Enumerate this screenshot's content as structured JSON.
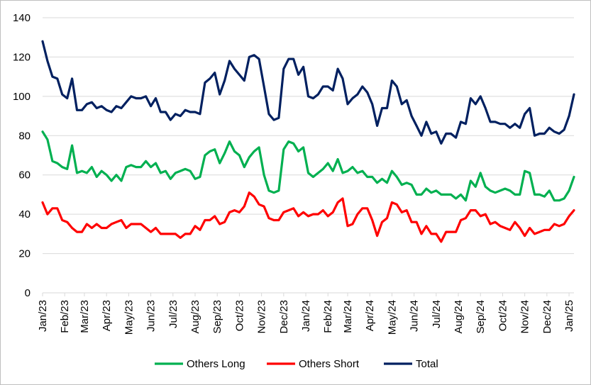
{
  "chart_data": {
    "type": "line",
    "x_tick_labels": [
      "Jan/23",
      "Feb/23",
      "Mar/23",
      "Apr/23",
      "May/23",
      "Jun/23",
      "Jul/23",
      "Aug/23",
      "Sep/23",
      "Oct/23",
      "Nov/23",
      "Dec/23",
      "Jan/24",
      "Feb/24",
      "Mar/24",
      "Apr/24",
      "May/24",
      "Jun/24",
      "Jul/24",
      "Aug/24",
      "Sep/24",
      "Oct/24",
      "Nov/24",
      "Dec/24",
      "Jan/25"
    ],
    "x_tick_weeks": [
      0,
      4.5,
      8.5,
      13,
      17.5,
      22,
      26.5,
      31,
      35.5,
      40,
      44.5,
      49,
      53.5,
      58,
      62,
      66.5,
      71,
      75.5,
      80,
      84.5,
      89,
      93.5,
      98,
      102.5,
      107
    ],
    "ylim": [
      0,
      140
    ],
    "y_ticks": [
      0,
      20,
      40,
      60,
      80,
      100,
      120,
      140
    ],
    "grid": "horizontal",
    "legend_position": "bottom",
    "series": [
      {
        "name": "Others Long",
        "color": "#00b050",
        "values": [
          82,
          78,
          67,
          66,
          64,
          63,
          75,
          61,
          62,
          61,
          64,
          59,
          62,
          60,
          57,
          60,
          57,
          64,
          65,
          64,
          64,
          67,
          64,
          66,
          61,
          62,
          58,
          61,
          62,
          63,
          62,
          58,
          59,
          70,
          72,
          73,
          66,
          71,
          77,
          72,
          70,
          64,
          69,
          72,
          74,
          60,
          52,
          51,
          52,
          73,
          77,
          76,
          72,
          74,
          61,
          59,
          61,
          63,
          66,
          62,
          68,
          61,
          62,
          64,
          61,
          62,
          59,
          59,
          56,
          58,
          56,
          62,
          59,
          55,
          56,
          55,
          50,
          50,
          53,
          51,
          52,
          50,
          50,
          50,
          48,
          50,
          47,
          57,
          54,
          61,
          54,
          52,
          51,
          52,
          53,
          52,
          50,
          50,
          62,
          61,
          50,
          50,
          49,
          52,
          47,
          47,
          48,
          52,
          59
        ]
      },
      {
        "name": "Others Short",
        "color": "#ff0000",
        "values": [
          46,
          40,
          43,
          43,
          37,
          36,
          33,
          31,
          31,
          35,
          33,
          35,
          33,
          33,
          35,
          36,
          37,
          33,
          35,
          35,
          35,
          33,
          31,
          33,
          30,
          30,
          30,
          30,
          28,
          30,
          30,
          34,
          32,
          37,
          37,
          39,
          35,
          36,
          41,
          42,
          41,
          44,
          51,
          49,
          45,
          44,
          38,
          37,
          37,
          41,
          42,
          43,
          39,
          41,
          39,
          40,
          40,
          42,
          39,
          41,
          46,
          48,
          34,
          35,
          40,
          43,
          43,
          37,
          29,
          36,
          38,
          46,
          45,
          41,
          42,
          36,
          36,
          30,
          34,
          30,
          30,
          26,
          31,
          31,
          31,
          37,
          38,
          42,
          42,
          39,
          40,
          35,
          36,
          34,
          33,
          32,
          36,
          33,
          29,
          33,
          30,
          31,
          32,
          32,
          35,
          34,
          35,
          39,
          42
        ]
      },
      {
        "name": "Total",
        "color": "#002060",
        "values": [
          128,
          118,
          110,
          109,
          101,
          99,
          109,
          93,
          93,
          96,
          97,
          94,
          95,
          93,
          92,
          95,
          94,
          97,
          100,
          99,
          99,
          100,
          95,
          99,
          92,
          92,
          88,
          91,
          90,
          93,
          92,
          92,
          91,
          107,
          109,
          112,
          101,
          108,
          118,
          114,
          111,
          108,
          120,
          121,
          119,
          105,
          91,
          88,
          89,
          114,
          119,
          119,
          111,
          115,
          100,
          99,
          101,
          105,
          105,
          103,
          114,
          109,
          96,
          99,
          101,
          105,
          102,
          96,
          85,
          94,
          94,
          108,
          105,
          96,
          98,
          90,
          85,
          80,
          87,
          81,
          82,
          76,
          81,
          81,
          79,
          87,
          86,
          99,
          96,
          100,
          94,
          87,
          87,
          86,
          86,
          84,
          86,
          84,
          91,
          94,
          80,
          81,
          81,
          84,
          82,
          81,
          83,
          90,
          101
        ]
      }
    ]
  }
}
